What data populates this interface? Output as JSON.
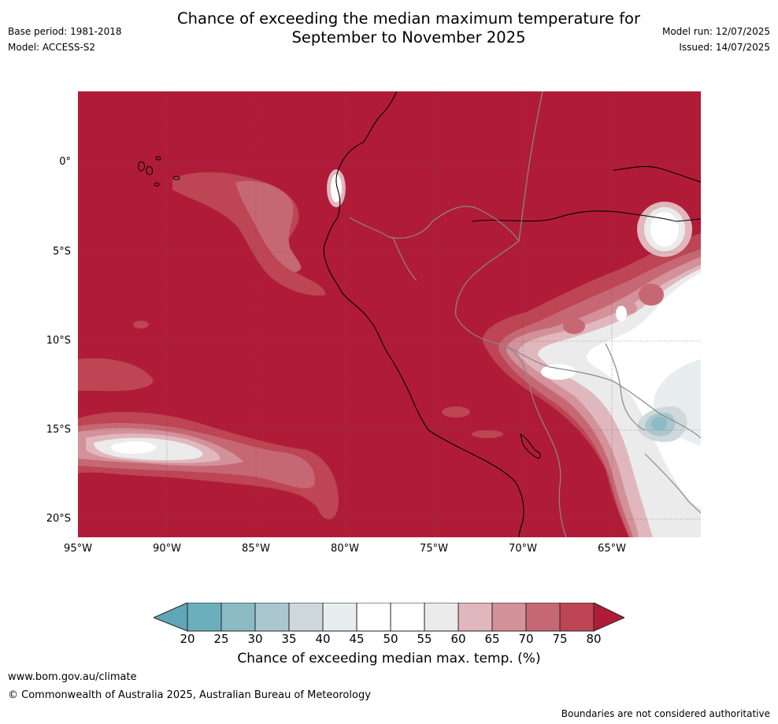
{
  "title": {
    "line1": "Chance of exceeding the median maximum temperature for",
    "line2": "September to November 2025"
  },
  "meta_left": {
    "base_period": "Base period: 1981-2018",
    "model": "Model: ACCESS-S2"
  },
  "meta_right": {
    "model_run": "Model run: 12/07/2025",
    "issued": "Issued: 14/07/2025"
  },
  "map": {
    "lat_labels": [
      "0°",
      "5°S",
      "10°S",
      "15°S",
      "20°S"
    ],
    "lon_labels": [
      "95°W",
      "90°W",
      "85°W",
      "80°W",
      "75°W",
      "70°W",
      "65°W"
    ],
    "lon_range": [
      -95,
      -60
    ],
    "lat_range": [
      -21,
      4
    ],
    "dominant_category": ">80"
  },
  "colorbar": {
    "ticks": [
      "20",
      "25",
      "30",
      "35",
      "40",
      "45",
      "50",
      "55",
      "60",
      "65",
      "70",
      "75",
      "80"
    ],
    "label": "Chance of exceeding median max. temp. (%)",
    "colors": {
      "lt20": "#5fa7b6",
      "20_25": "#6cafbc",
      "25_30": "#8bbbc4",
      "30_35": "#a9c7cd",
      "35_40": "#cfd9dc",
      "40_45": "#e8eef0",
      "45_50": "#ffffff",
      "50_55": "#ffffff",
      "55_60": "#ebebeb",
      "60_65": "#e0b7bd",
      "65_70": "#d3919a",
      "70_75": "#c66874",
      "75_80": "#bd4554",
      "gt80": "#b01c38"
    }
  },
  "footer": {
    "url": "www.bom.gov.au/climate",
    "copyright": "© Commonwealth of Australia 2025, Australian Bureau of Meteorology",
    "note": "Boundaries are not considered authoritative"
  }
}
